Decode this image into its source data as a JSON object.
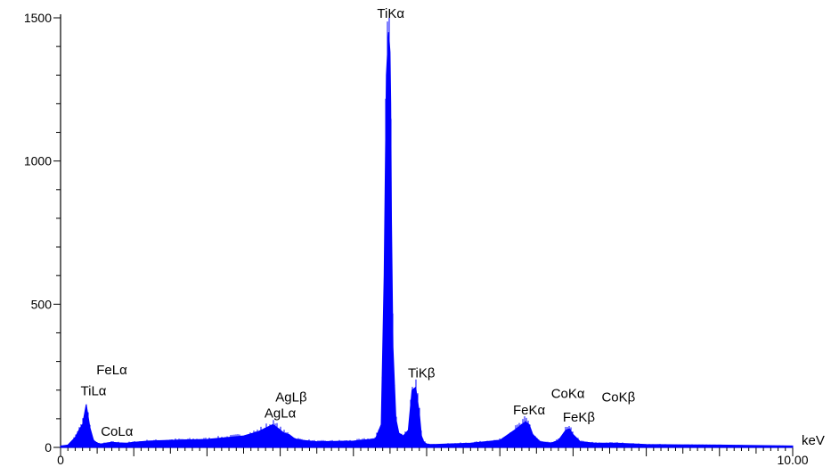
{
  "chart_data": {
    "type": "area",
    "title": "",
    "xlabel": "keV",
    "ylabel": "",
    "xlim": [
      0,
      10.0
    ],
    "ylim": [
      0,
      1500
    ],
    "x_tick_labels": [
      {
        "value": 0,
        "label": "0"
      },
      {
        "value": 10.0,
        "label": "10.00"
      }
    ],
    "y_tick_labels": [
      {
        "value": 0,
        "label": "0"
      },
      {
        "value": 500,
        "label": "500"
      },
      {
        "value": 1000,
        "label": "1000"
      },
      {
        "value": 1500,
        "label": "1500"
      }
    ],
    "grid": false,
    "colors": {
      "spectrum": "#0000ff",
      "axis": "#000000"
    },
    "series": [
      {
        "x": [
          0.0,
          0.1,
          0.2,
          0.25,
          0.3,
          0.35,
          0.4,
          0.45,
          0.5,
          0.55,
          0.6,
          0.7,
          0.8,
          0.9,
          1.0,
          1.2,
          1.5,
          2.0,
          2.5,
          2.7,
          2.9,
          2.98,
          3.05,
          3.12,
          3.2,
          3.3,
          3.5,
          4.0,
          4.3,
          4.38,
          4.42,
          4.45,
          4.48,
          4.5,
          4.51,
          4.52,
          4.54,
          4.58,
          4.62,
          4.68,
          4.75,
          4.8,
          4.85,
          4.9,
          4.93,
          4.96,
          5.0,
          5.05,
          5.1,
          5.3,
          5.6,
          6.0,
          6.2,
          6.35,
          6.4,
          6.45,
          6.55,
          6.7,
          6.8,
          6.9,
          6.95,
          7.0,
          7.1,
          7.3,
          7.6,
          8.0,
          9.0,
          10.0
        ],
        "y": [
          5,
          8,
          35,
          60,
          80,
          150,
          70,
          25,
          15,
          12,
          14,
          18,
          16,
          15,
          18,
          22,
          25,
          28,
          40,
          55,
          80,
          65,
          50,
          45,
          30,
          25,
          20,
          22,
          30,
          80,
          600,
          1300,
          1450,
          1380,
          1200,
          800,
          350,
          100,
          50,
          40,
          60,
          200,
          210,
          120,
          40,
          20,
          12,
          10,
          10,
          12,
          15,
          25,
          60,
          90,
          80,
          45,
          20,
          15,
          25,
          60,
          65,
          45,
          20,
          15,
          15,
          10,
          8,
          5
        ],
        "annotations_unit": "counts"
      }
    ],
    "peak_labels": [
      {
        "text": "TiKα",
        "x": 4.51,
        "y": 1500
      },
      {
        "text": "TiKβ",
        "x": 4.93,
        "y": 245
      },
      {
        "text": "FeLα",
        "x": 0.7,
        "y": 255
      },
      {
        "text": "TiLα",
        "x": 0.45,
        "y": 182
      },
      {
        "text": "CoLα",
        "x": 0.77,
        "y": 40
      },
      {
        "text": "AgLβ",
        "x": 3.15,
        "y": 160
      },
      {
        "text": "AgLα",
        "x": 3.0,
        "y": 105
      },
      {
        "text": "FeKα",
        "x": 6.4,
        "y": 115
      },
      {
        "text": "CoKα",
        "x": 6.93,
        "y": 172
      },
      {
        "text": "CoKβ",
        "x": 7.62,
        "y": 160
      },
      {
        "text": "FeKβ",
        "x": 7.08,
        "y": 90
      }
    ]
  }
}
